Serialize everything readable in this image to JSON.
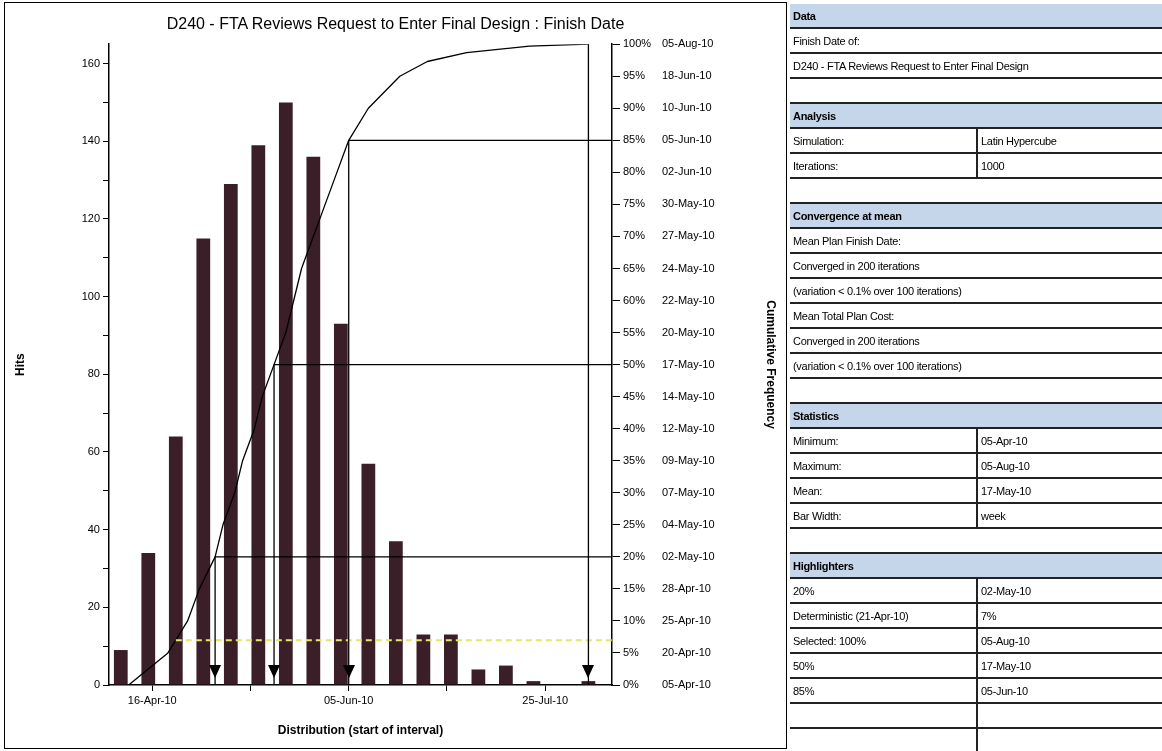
{
  "chart_data": [
    {
      "type": "bar",
      "title": "D240 - FTA Reviews Request to Enter Final Design : Finish Date",
      "xlabel": "Distribution (start of interval)",
      "ylabel": "Hits",
      "y2label": "Cumulative Frequency",
      "x": [
        "2010-04-08",
        "2010-04-15",
        "2010-04-22",
        "2010-04-29",
        "2010-05-06",
        "2010-05-13",
        "2010-05-20",
        "2010-05-27",
        "2010-06-03",
        "2010-06-10",
        "2010-06-17",
        "2010-06-24",
        "2010-07-01",
        "2010-07-08",
        "2010-07-15",
        "2010-07-22",
        "2010-07-29",
        "2010-08-05"
      ],
      "series": [
        {
          "type": "bar",
          "color": "#3b1f28",
          "values": [
            9,
            34,
            64,
            115,
            129,
            139,
            150,
            136,
            93,
            57,
            37,
            13,
            13,
            4,
            5,
            1,
            0,
            1
          ]
        },
        {
          "type": "line",
          "axis": "y2",
          "color": "#000000",
          "x": [
            "2010-04-10",
            "2010-04-20",
            "2010-04-25",
            "2010-04-28",
            "2010-05-02",
            "2010-05-04",
            "2010-05-07",
            "2010-05-09",
            "2010-05-12",
            "2010-05-14",
            "2010-05-17",
            "2010-05-20",
            "2010-05-22",
            "2010-05-24",
            "2010-05-27",
            "2010-05-30",
            "2010-06-02",
            "2010-06-05",
            "2010-06-10",
            "2010-06-18",
            "2010-06-25",
            "2010-07-05",
            "2010-07-21",
            "2010-08-05"
          ],
          "values": [
            0,
            5,
            10,
            15,
            20,
            25,
            30,
            35,
            40,
            45,
            50,
            55,
            60,
            65,
            70,
            75,
            80,
            85,
            90,
            95,
            97.3,
            98.7,
            99.7,
            100
          ]
        }
      ],
      "xlim": [
        "2010-04-05",
        "2010-08-11"
      ],
      "xticks": [
        {
          "value": "2010-04-16",
          "label": "16-Apr-10"
        },
        {
          "value": "2010-05-11",
          "label": null
        },
        {
          "value": "2010-06-05",
          "label": "05-Jun-10"
        },
        {
          "value": "2010-06-30",
          "label": null
        },
        {
          "value": "2010-07-25",
          "label": "25-Jul-10"
        }
      ],
      "ylim": [
        0,
        165
      ],
      "yticks": [
        0,
        {
          "value": 10,
          "label": null
        },
        20,
        {
          "value": 30,
          "label": null
        },
        40,
        {
          "value": 50,
          "label": null
        },
        60,
        {
          "value": 70,
          "label": null
        },
        80,
        {
          "value": 90,
          "label": null
        },
        100,
        {
          "value": 110,
          "label": null
        },
        120,
        {
          "value": 130,
          "label": null
        },
        140,
        {
          "value": 150,
          "label": null
        },
        160
      ],
      "y2lim": [
        0,
        100
      ],
      "y2ticks": [
        {
          "value": 0,
          "label": "0%"
        },
        {
          "value": 5,
          "label": "5%"
        },
        {
          "value": 10,
          "label": "10%"
        },
        {
          "value": 15,
          "label": "15%"
        },
        {
          "value": 20,
          "label": "20%"
        },
        {
          "value": 25,
          "label": "25%"
        },
        {
          "value": 30,
          "label": "30%"
        },
        {
          "value": 35,
          "label": "35%"
        },
        {
          "value": 40,
          "label": "40%"
        },
        {
          "value": 45,
          "label": "45%"
        },
        {
          "value": 50,
          "label": "50%"
        },
        {
          "value": 55,
          "label": "55%"
        },
        {
          "value": 60,
          "label": "60%"
        },
        {
          "value": 65,
          "label": "65%"
        },
        {
          "value": 70,
          "label": "70%"
        },
        {
          "value": 75,
          "label": "75%"
        },
        {
          "value": 80,
          "label": "80%"
        },
        {
          "value": 85,
          "label": "85%"
        },
        {
          "value": 90,
          "label": "90%"
        },
        {
          "value": 95,
          "label": "95%"
        },
        {
          "value": 100,
          "label": "100%"
        }
      ],
      "annotations": [
        "05-Apr-10",
        "20-Apr-10",
        "25-Apr-10",
        "28-Apr-10",
        "02-May-10",
        "04-May-10",
        "07-May-10",
        "09-May-10",
        "12-May-10",
        "14-May-10",
        "17-May-10",
        "20-May-10",
        "22-May-10",
        "24-May-10",
        "27-May-10",
        "30-May-10",
        "02-Jun-10",
        "05-Jun-10",
        "10-Jun-10",
        "18-Jun-10",
        "05-Aug-10"
      ],
      "ref_lines": [
        {
          "axis": "y2",
          "value": 20,
          "color": "#000000"
        },
        {
          "axis": "y2",
          "value": 50,
          "color": "#000000"
        },
        {
          "axis": "y2",
          "value": 85,
          "color": "#000000"
        },
        {
          "axis": "y2",
          "value": 7,
          "color": "#e6e66a",
          "line_style": "dashed"
        },
        {
          "axis": "x",
          "value": "2010-05-02",
          "color": "#000000"
        },
        {
          "axis": "x",
          "value": "2010-05-17",
          "color": "#000000"
        },
        {
          "axis": "x",
          "value": "2010-06-05",
          "color": "#000000"
        },
        {
          "axis": "x",
          "value": "2010-08-05",
          "color": "#000000"
        }
      ],
      "grid": false,
      "legend": false
    },
    {
      "type": "other",
      "annotations": [
        "Data",
        "Finish Date of:",
        "D240 - FTA Reviews Request to Enter Final Design",
        "Analysis",
        "Simulation:",
        "Latin Hypercube",
        "Iterations:",
        "1000",
        "Convergence at mean",
        "Mean Plan Finish Date:",
        "Converged in 200 iterations",
        "(variation < 0.1% over 100 iterations)",
        "Mean Total Plan Cost:",
        "Converged in 200 iterations",
        "(variation < 0.1% over 100 iterations)",
        "Statistics",
        "Minimum:",
        "05-Apr-10",
        "Maximum:",
        "05-Aug-10",
        "Mean:",
        "17-May-10",
        "Bar Width:",
        "week",
        "Highlighters",
        "20%",
        "02-May-10",
        "Deterministic (21-Apr-10)",
        "7%",
        "Selected: 100%",
        "05-Aug-10",
        "50%",
        "17-May-10",
        "85%",
        "05-Jun-10"
      ]
    }
  ]
}
